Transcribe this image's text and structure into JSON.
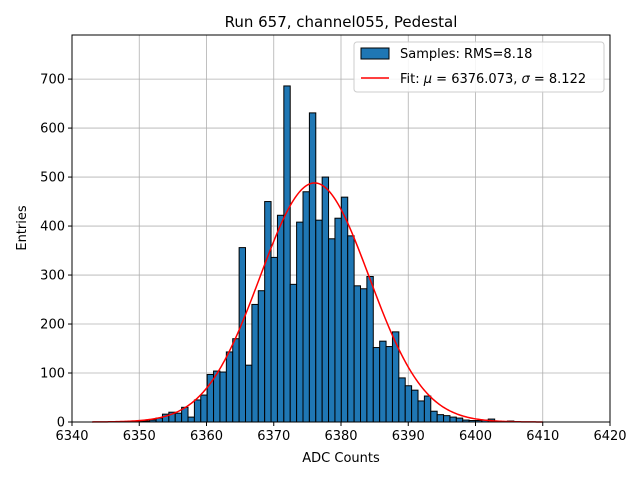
{
  "chart_data": {
    "type": "bar",
    "title": "Run 657, channel055, Pedestal",
    "xlabel": "ADC Counts",
    "ylabel": "Entries",
    "xlim": [
      6340,
      6420
    ],
    "ylim": [
      0,
      790
    ],
    "xticks": [
      6340,
      6350,
      6360,
      6370,
      6380,
      6390,
      6400,
      6410,
      6420
    ],
    "yticks": [
      0,
      100,
      200,
      300,
      400,
      500,
      600,
      700
    ],
    "grid": true,
    "legend_position": "top-right",
    "bin_width": 0.95,
    "histogram": {
      "name": "Samples: RMS=8.18",
      "color": "#1f77b4",
      "edge_color": "#000000",
      "bins": [
        6343.0,
        6343.95,
        6344.9,
        6345.85,
        6346.8,
        6347.75,
        6348.7,
        6349.65,
        6350.6,
        6351.55,
        6352.5,
        6353.45,
        6354.4,
        6355.35,
        6356.3,
        6357.25,
        6358.2,
        6359.15,
        6360.1,
        6361.05,
        6362.0,
        6362.95,
        6363.9,
        6364.85,
        6365.8,
        6366.75,
        6367.7,
        6368.65,
        6369.6,
        6370.55,
        6371.5,
        6372.45,
        6373.4,
        6374.35,
        6375.3,
        6376.25,
        6377.2,
        6378.15,
        6379.1,
        6380.05,
        6381.0,
        6381.95,
        6382.9,
        6383.85,
        6384.8,
        6385.75,
        6386.7,
        6387.65,
        6388.6,
        6389.55,
        6390.5,
        6391.45,
        6392.4,
        6393.35,
        6394.3,
        6395.25,
        6396.2,
        6397.15,
        6398.1,
        6399.05,
        6400.0,
        6400.95,
        6401.9,
        6402.85,
        6403.8,
        6404.75,
        6405.7,
        6406.65,
        6407.6,
        6408.55,
        6409.5
      ],
      "values": [
        0,
        0,
        0,
        0,
        1,
        0,
        2,
        1,
        2,
        4,
        8,
        16,
        20,
        18,
        30,
        10,
        45,
        55,
        97,
        104,
        102,
        143,
        170,
        356,
        116,
        240,
        268,
        450,
        336,
        422,
        686,
        281,
        408,
        470,
        631,
        412,
        500,
        374,
        416,
        459,
        380,
        278,
        272,
        297,
        152,
        165,
        154,
        184,
        90,
        74,
        65,
        43,
        53,
        22,
        15,
        13,
        10,
        8,
        4,
        3,
        3,
        4,
        6,
        2,
        1,
        2,
        0,
        0,
        0,
        0,
        0
      ]
    },
    "fit": {
      "name": "Fit: μ = 6376.073, σ = 8.122",
      "label_prefix": "Fit: ",
      "label_mu": "μ",
      "label_mu_rest": " = 6376.073, ",
      "label_sigma": "σ",
      "label_sigma_rest": " = 8.122",
      "color": "#ff0000",
      "mu": 6376.073,
      "sigma": 8.122,
      "amplitude": 488,
      "x_range": [
        6343,
        6410
      ]
    }
  }
}
